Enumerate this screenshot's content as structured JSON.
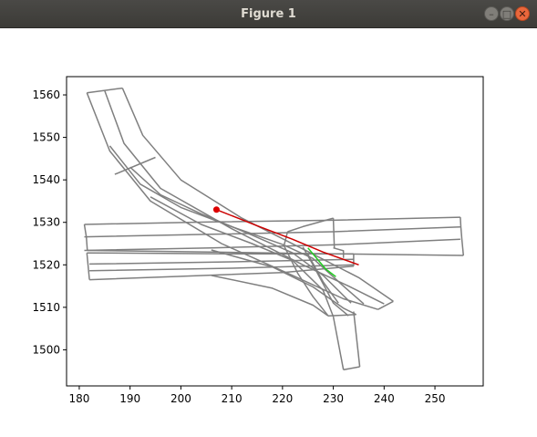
{
  "window": {
    "title": "Figure 1",
    "buttons": {
      "minimize": "–",
      "maximize": "□",
      "close": "✕"
    }
  },
  "chart_data": {
    "type": "line",
    "title": "",
    "xlabel": "",
    "ylabel": "",
    "xlim": [
      177.5,
      259.5
    ],
    "ylim": [
      1491.5,
      1564.3
    ],
    "x_ticks": [
      180,
      190,
      200,
      210,
      220,
      230,
      240,
      250
    ],
    "y_ticks": [
      1500,
      1510,
      1520,
      1530,
      1540,
      1550,
      1560
    ],
    "colors": {
      "lanes": "#7f7f7f",
      "path": "#cc0000",
      "candidate": "#22cc22",
      "point": "#dd0000"
    },
    "lane_lines": [
      [
        [
          181,
          1529.5
        ],
        [
          206,
          1530.1
        ],
        [
          230,
          1530.5
        ],
        [
          255,
          1531.2
        ]
      ],
      [
        [
          181,
          1526.6
        ],
        [
          206,
          1527.2
        ],
        [
          230,
          1527.8
        ],
        [
          255,
          1528.9
        ]
      ],
      [
        [
          181,
          1523.4
        ],
        [
          206,
          1524
        ],
        [
          230,
          1524.7
        ],
        [
          255,
          1526
        ]
      ],
      [
        [
          181,
          1529.5
        ],
        [
          181.4,
          1526.6
        ],
        [
          181.6,
          1523.4
        ]
      ],
      [
        [
          255,
          1531.2
        ],
        [
          255.1,
          1528.9
        ],
        [
          255.3,
          1526
        ],
        [
          255.6,
          1522.2
        ]
      ],
      [
        [
          181.6,
          1523.4
        ],
        [
          206,
          1523
        ],
        [
          230,
          1522.6
        ],
        [
          255.6,
          1522.2
        ]
      ],
      [
        [
          181.5,
          1522.8
        ],
        [
          210,
          1522.6
        ],
        [
          234,
          1522.6
        ]
      ],
      [
        [
          182,
          1520.2
        ],
        [
          210,
          1520.7
        ],
        [
          234,
          1521.3
        ]
      ],
      [
        [
          182,
          1518.6
        ],
        [
          210,
          1519.2
        ],
        [
          234,
          1520
        ]
      ],
      [
        [
          182,
          1516.5
        ],
        [
          200,
          1517.3
        ],
        [
          220,
          1518.2
        ],
        [
          234,
          1519.7
        ]
      ],
      [
        [
          181.5,
          1522.8
        ],
        [
          182,
          1516.5
        ]
      ],
      [
        [
          234,
          1522.6
        ],
        [
          234,
          1519.7
        ]
      ],
      [
        [
          181.5,
          1560.5
        ],
        [
          186,
          1546.8
        ],
        [
          194,
          1535
        ],
        [
          208,
          1525
        ],
        [
          222,
          1517.5
        ],
        [
          232,
          1512
        ],
        [
          238.8,
          1509.5
        ]
      ],
      [
        [
          185,
          1561
        ],
        [
          188.8,
          1548.6
        ],
        [
          196,
          1538
        ],
        [
          210,
          1528.5
        ],
        [
          224,
          1520
        ],
        [
          233,
          1515
        ],
        [
          240,
          1510.8
        ]
      ],
      [
        [
          188.5,
          1561.6
        ],
        [
          192.5,
          1550.5
        ],
        [
          200,
          1540
        ],
        [
          212,
          1531
        ],
        [
          226,
          1522.5
        ],
        [
          235,
          1517
        ],
        [
          241.8,
          1511.4
        ]
      ],
      [
        [
          181.5,
          1560.5
        ],
        [
          188.5,
          1561.6
        ]
      ],
      [
        [
          187,
          1541.3
        ],
        [
          195,
          1545.3
        ]
      ],
      [
        [
          238.8,
          1509.5
        ],
        [
          241.8,
          1511.4
        ]
      ],
      [
        [
          186,
          1548
        ],
        [
          192,
          1539
        ],
        [
          200,
          1533.5
        ],
        [
          210,
          1529
        ],
        [
          220,
          1524.8
        ],
        [
          226,
          1521.5
        ],
        [
          232,
          1515
        ],
        [
          236,
          1510.8
        ]
      ],
      [
        [
          190,
          1543
        ],
        [
          196,
          1536.5
        ],
        [
          204,
          1532
        ],
        [
          214,
          1527
        ],
        [
          222,
          1522.8
        ],
        [
          228,
          1517.5
        ],
        [
          233.5,
          1511
        ]
      ],
      [
        [
          194,
          1536
        ],
        [
          204,
          1529.5
        ],
        [
          214,
          1525
        ],
        [
          222,
          1521
        ],
        [
          228,
          1514
        ],
        [
          230,
          1507.8
        ]
      ],
      [
        [
          206,
          1523.5
        ],
        [
          218,
          1519.5
        ],
        [
          226,
          1514.8
        ],
        [
          232,
          1509.8
        ],
        [
          234.5,
          1508.3
        ]
      ],
      [
        [
          206,
          1517.5
        ],
        [
          218,
          1514.5
        ],
        [
          226,
          1510.5
        ],
        [
          229,
          1508
        ]
      ],
      [
        [
          229,
          1508
        ],
        [
          234.5,
          1508.3
        ]
      ],
      [
        [
          230,
          1507.8
        ],
        [
          232,
          1495.3
        ]
      ],
      [
        [
          234,
          1509
        ],
        [
          235.2,
          1496
        ]
      ],
      [
        [
          232,
          1495.3
        ],
        [
          235.2,
          1496
        ]
      ],
      [
        [
          221,
          1527.8
        ],
        [
          224,
          1529
        ],
        [
          230,
          1531
        ]
      ],
      [
        [
          221,
          1527.8
        ],
        [
          220.3,
          1524.5
        ],
        [
          223,
          1518
        ],
        [
          226,
          1512.5
        ],
        [
          229,
          1508
        ]
      ],
      [
        [
          230,
          1531
        ],
        [
          230.2,
          1524
        ]
      ],
      [
        [
          230,
          1524
        ],
        [
          232,
          1523.3
        ],
        [
          232,
          1521.6
        ]
      ],
      [
        [
          225,
          1522.5
        ],
        [
          228,
          1516
        ],
        [
          231,
          1511
        ]
      ],
      [
        [
          224,
          1524.2
        ],
        [
          226,
          1520
        ],
        [
          230,
          1511
        ],
        [
          233,
          1508
        ]
      ]
    ],
    "path_red": [
      [
        207,
        1533
      ],
      [
        215,
        1529.2
      ],
      [
        222,
        1526
      ],
      [
        228,
        1523
      ],
      [
        235,
        1520
      ]
    ],
    "path_green": [
      [
        225,
        1524
      ],
      [
        228.5,
        1519
      ],
      [
        230.5,
        1517.2
      ]
    ],
    "point": [
      207,
      1533
    ]
  }
}
